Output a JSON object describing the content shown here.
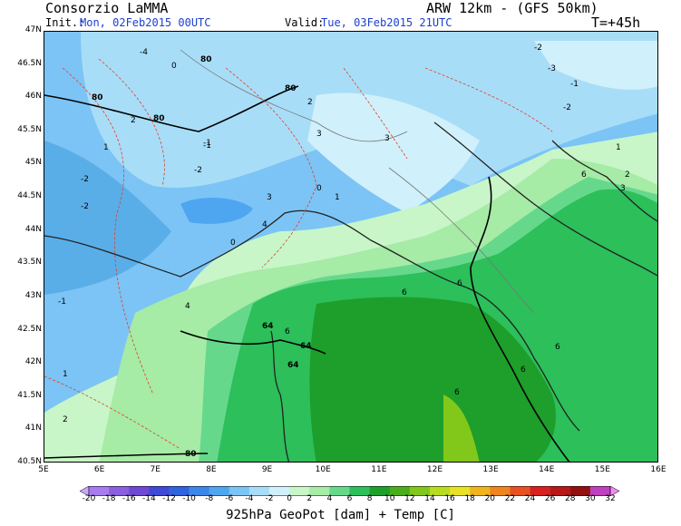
{
  "header": {
    "org": "Consorzio LaMMA",
    "model": "ARW 12km - (GFS 50km)",
    "init_label": "Init.:",
    "init_value": "Mon, 02Feb2015 00UTC",
    "valid_label": "Valid:",
    "valid_value": "Tue, 03Feb2015 21UTC",
    "forecast_step": "T=+45h"
  },
  "axes": {
    "lat_labels": [
      "47N",
      "46.5N",
      "46N",
      "45.5N",
      "45N",
      "44.5N",
      "44N",
      "43.5N",
      "43N",
      "42.5N",
      "42N",
      "41.5N",
      "41N",
      "40.5N"
    ],
    "lon_labels": [
      "5E",
      "6E",
      "7E",
      "8E",
      "9E",
      "10E",
      "11E",
      "12E",
      "13E",
      "14E",
      "15E",
      "16E"
    ]
  },
  "colorbar": {
    "labels": [
      "-20",
      "-18",
      "-16",
      "-14",
      "-12",
      "-10",
      "-8",
      "-6",
      "-4",
      "-2",
      "0",
      "2",
      "4",
      "6",
      "8",
      "10",
      "12",
      "14",
      "16",
      "18",
      "20",
      "22",
      "24",
      "26",
      "28",
      "30",
      "32"
    ],
    "colors": [
      "#c8a8ff",
      "#a87cf0",
      "#8a5fe0",
      "#6f49d6",
      "#3f49d8",
      "#2f63e0",
      "#3c86ea",
      "#4ea6f0",
      "#7cc4f5",
      "#a8ddf8",
      "#d0f0fb",
      "#c8f6c8",
      "#a6eba6",
      "#66d88c",
      "#2cbf5a",
      "#1e9e2a",
      "#4aae1c",
      "#82c81a",
      "#b8dc20",
      "#e8e224",
      "#f0b41e",
      "#f08420",
      "#e85222",
      "#d82020",
      "#b81818",
      "#941010",
      "#c040c0",
      "#f08af0"
    ]
  },
  "map": {
    "contour_labels_temp": [
      "-4",
      "-2",
      "-1",
      "0",
      "1",
      "2",
      "3",
      "4",
      "6",
      "-2",
      "-1",
      "0",
      "1",
      "2",
      "3",
      "-2",
      "-1",
      "0",
      "1",
      "2",
      "3",
      "4",
      "6",
      "6",
      "6",
      "6",
      "6",
      "6",
      "-2",
      "-3",
      "-2",
      "-1",
      "1",
      "2",
      "3"
    ],
    "contour_labels_geopot": [
      "80",
      "80",
      "80",
      "80",
      "80",
      "64",
      "64",
      "64"
    ]
  },
  "footer": {
    "title": "925hPa GeoPot [dam] + Temp [C]"
  }
}
